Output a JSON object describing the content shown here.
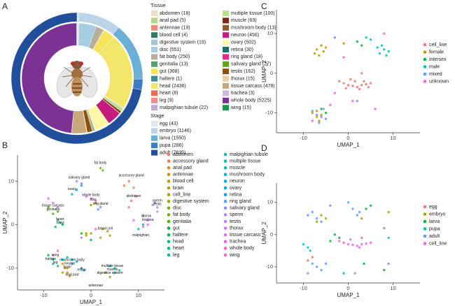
{
  "chart_data": [
    {
      "type": "pie",
      "panel": "A",
      "rings": [
        {
          "title": "Tissue",
          "labels": [
            "abdomen (18)",
            "anal pad (5)",
            "antennae (19)",
            "blood cell (4)",
            "digestive system (19)",
            "disc (551)",
            "fat body (250)",
            "genitalia (13)",
            "gut (368)",
            "haltere (1)",
            "head (2436)",
            "heart (8)",
            "leg (9)",
            "malpighian tubule (22)",
            "multiple tissue (100)",
            "muscle (63)",
            "mushroom body (13)",
            "neuron (456)",
            "ovary (502)",
            "retina (30)",
            "ring gland (18)",
            "salivary gland (27)",
            "testis (162)",
            "thorax (15)",
            "tissue carcass (478)",
            "trachea (3)",
            "whole body (5225)",
            "wing (15)"
          ],
          "values": [
            18,
            5,
            19,
            4,
            19,
            551,
            250,
            13,
            368,
            1,
            2436,
            8,
            9,
            22,
            100,
            63,
            13,
            456,
            502,
            30,
            18,
            27,
            162,
            15,
            478,
            3,
            5225,
            15
          ],
          "colors": [
            "#f0dcc4",
            "#b5d88f",
            "#ee8a7a",
            "#2e7d5b",
            "#a8c4d8",
            "#a6cee3",
            "#b9ad9a",
            "#5a9e6f",
            "#f7e45a",
            "#3a8f8a",
            "#f2e66b",
            "#e4704f",
            "#f28c8c",
            "#c3a9d6",
            "#b8e186",
            "#7f2a1c",
            "#8c5a2b",
            "#c51b7d",
            "#fff6a8",
            "#1f6f6f",
            "#e7298a",
            "#66a61e",
            "#8c510a",
            "#e8cfa8",
            "#c7a87a",
            "#cdb5e0",
            "#7b3294",
            "#1a9850"
          ]
        },
        {
          "title": "Stage",
          "labels": [
            "egg (43)",
            "embryo (1146)",
            "larva (1550)",
            "pupa (286)",
            "adult (7835)"
          ],
          "values": [
            43,
            1146,
            1550,
            286,
            7835
          ],
          "colors": [
            "#dce9f5",
            "#bcd4ea",
            "#6baed6",
            "#3b7cc2",
            "#214f9c"
          ]
        }
      ]
    },
    {
      "type": "scatter",
      "panel": "B",
      "x_label": "UMAP_1",
      "y_label": "UMAP_2",
      "xlim": [
        -15.5,
        15.5
      ],
      "ylim": [
        -15,
        16
      ],
      "xticks": [
        -10,
        0,
        10
      ],
      "yticks": [
        -10,
        0,
        10
      ],
      "series": [
        {
          "name": "abdomen",
          "color": "#f8766d",
          "x": [
            8.5,
            9.5,
            8
          ],
          "y": [
            5.5,
            6.5,
            4
          ]
        },
        {
          "name": "accessory gland",
          "color": "#f07e4d",
          "x": [
            7,
            8,
            9
          ],
          "y": [
            9,
            10,
            8.5
          ]
        },
        {
          "name": "anal pad",
          "color": "#e68613",
          "x": [
            -5,
            -4.5
          ],
          "y": [
            -11,
            -11.8
          ]
        },
        {
          "name": "antennae",
          "color": "#db8e00",
          "x": [
            -6,
            -5.5
          ],
          "y": [
            -11,
            -10
          ]
        },
        {
          "name": "blood cell",
          "color": "#cd9600",
          "x": [
            2.5,
            3.5
          ],
          "y": [
            -1,
            -1.5
          ]
        },
        {
          "name": "brain",
          "color": "#be9c00",
          "x": [
            -6,
            -5
          ],
          "y": [
            -9,
            -10
          ]
        },
        {
          "name": "cell_line",
          "color": "#aea200",
          "x": [
            0,
            2,
            4,
            -1
          ],
          "y": [
            -2,
            -3,
            -2.5,
            -2.5
          ]
        },
        {
          "name": "digestive system",
          "color": "#9ca700",
          "x": [
            3,
            4
          ],
          "y": [
            -11,
            -12
          ]
        },
        {
          "name": "disc",
          "color": "#86ac00",
          "x": [
            1,
            0,
            -1
          ],
          "y": [
            5,
            4.5,
            -2
          ]
        },
        {
          "name": "fat body",
          "color": "#6bb100",
          "x": [
            2,
            2.5
          ],
          "y": [
            13,
            12.5
          ]
        },
        {
          "name": "genitalia",
          "color": "#45b500",
          "x": [
            -8,
            -7,
            -9
          ],
          "y": [
            2.5,
            3,
            4
          ]
        },
        {
          "name": "gut",
          "color": "#00b931",
          "x": [
            0,
            -2
          ],
          "y": [
            -3.5,
            -2
          ]
        },
        {
          "name": "haltere",
          "color": "#00bc52",
          "x": [
            -8,
            -9
          ],
          "y": [
            -8,
            -7
          ]
        },
        {
          "name": "head",
          "color": "#00be6c",
          "x": [
            -7,
            -6,
            -7.5
          ],
          "y": [
            1,
            0,
            -0.5
          ]
        },
        {
          "name": "heart",
          "color": "#00c082",
          "x": [
            -6.5
          ],
          "y": [
            0.5
          ]
        },
        {
          "name": "leg",
          "color": "#00c196",
          "x": [
            -8,
            -7
          ],
          "y": [
            -9,
            -9.5
          ]
        },
        {
          "name": "malpighian tubule",
          "color": "#00c1a9",
          "x": [
            10,
            11
          ],
          "y": [
            -1,
            0
          ]
        },
        {
          "name": "multiple tissue",
          "color": "#00c0bb",
          "x": [
            5,
            4
          ],
          "y": [
            -10,
            -9.5
          ]
        },
        {
          "name": "muscle",
          "color": "#00bdcc",
          "x": [
            6,
            5
          ],
          "y": [
            -10.5,
            -11
          ]
        },
        {
          "name": "mushroom body",
          "color": "#00b9da",
          "x": [
            -4,
            -3
          ],
          "y": [
            -8,
            -8.5
          ]
        },
        {
          "name": "neuron",
          "color": "#00b4e7",
          "x": [
            -6,
            -5,
            -4
          ],
          "y": [
            -8,
            -7.5,
            -9
          ]
        },
        {
          "name": "ovary",
          "color": "#00adf2",
          "x": [
            -3,
            -2,
            -4
          ],
          "y": [
            8,
            9,
            7
          ]
        },
        {
          "name": "retina",
          "color": "#00a5fb",
          "x": [
            -2,
            -1.5
          ],
          "y": [
            -10,
            -10.5
          ]
        },
        {
          "name": "ring gland",
          "color": "#619cff",
          "x": [
            2,
            1.5
          ],
          "y": [
            4,
            3.5
          ]
        },
        {
          "name": "salivary gland",
          "color": "#8b93ff",
          "x": [
            -2,
            -3
          ],
          "y": [
            9.5,
            10
          ]
        },
        {
          "name": "sperm",
          "color": "#a789ff",
          "x": [
            14,
            13.5
          ],
          "y": [
            4,
            5
          ]
        },
        {
          "name": "testis",
          "color": "#bc80ff",
          "x": [
            13,
            14
          ],
          "y": [
            4.5,
            3
          ]
        },
        {
          "name": "thorax",
          "color": "#ce78fb",
          "x": [
            11,
            12
          ],
          "y": [
            2,
            1
          ]
        },
        {
          "name": "tissue carcass",
          "color": "#dd71f3",
          "x": [
            -8,
            -9,
            -7,
            9
          ],
          "y": [
            5,
            6,
            4,
            1
          ]
        },
        {
          "name": "trachea",
          "color": "#e96be8",
          "x": [
            12,
            11
          ],
          "y": [
            0,
            -0.5
          ]
        },
        {
          "name": "whole body",
          "color": "#f365db",
          "x": [
            0,
            -1,
            1,
            -2,
            1
          ],
          "y": [
            6,
            6.5,
            5.5,
            -3,
            -1
          ]
        },
        {
          "name": "wing",
          "color": "#fa62cc",
          "x": [
            -7,
            -8
          ],
          "y": [
            -6,
            -7
          ]
        }
      ],
      "annotations": [
        {
          "text": "fat body",
          "x": 2,
          "y": 14.2
        },
        {
          "text": "accessory gland",
          "x": 8.5,
          "y": 11.3
        },
        {
          "text": "salivary gland",
          "x": -2.5,
          "y": 10.8
        },
        {
          "text": "whole body",
          "x": 0,
          "y": 6.8
        },
        {
          "text": "disc",
          "x": 0.5,
          "y": 5.8
        },
        {
          "text": "ring gland",
          "x": 2,
          "y": 4.8
        },
        {
          "text": "abdomen",
          "x": 9,
          "y": 6.6
        },
        {
          "text": "sperm",
          "x": 14,
          "y": 5.5
        },
        {
          "text": "testis",
          "x": 14,
          "y": 4.7
        },
        {
          "text": "thorax",
          "x": 11.7,
          "y": 2
        },
        {
          "text": "trachea",
          "x": 12,
          "y": 1.1
        },
        {
          "text": "malpighian",
          "x": 10.5,
          "y": -2.4
        },
        {
          "text": "ovary",
          "x": -4,
          "y": 8.2
        },
        {
          "text": "tissue carcass",
          "x": -8,
          "y": 4.4
        },
        {
          "text": "genitalia",
          "x": -8,
          "y": 3.5
        },
        {
          "text": "heart",
          "x": -6.5,
          "y": 1.3
        },
        {
          "text": "head",
          "x": -6.5,
          "y": 0.4
        },
        {
          "text": "blood cell",
          "x": 3,
          "y": -0.9
        },
        {
          "text": "wing",
          "x": -7.5,
          "y": -7
        },
        {
          "text": "haltere",
          "x": -8.5,
          "y": -7.9
        },
        {
          "text": "leg",
          "x": -7.5,
          "y": -8.7
        },
        {
          "text": "mushroom body",
          "x": -4,
          "y": -8.1
        },
        {
          "text": "neuron",
          "x": -4.5,
          "y": -8.9
        },
        {
          "text": "brain",
          "x": -5,
          "y": -9.7
        },
        {
          "text": "retina",
          "x": -2,
          "y": -10.4
        },
        {
          "text": "anal pad",
          "x": -4,
          "y": -11.5
        },
        {
          "text": "multiple tissue",
          "x": 4.5,
          "y": -9.5
        },
        {
          "text": "muscle",
          "x": 4.5,
          "y": -10.3
        },
        {
          "text": "digestive system",
          "x": 4,
          "y": -11.1
        },
        {
          "text": "antennae",
          "x": 1,
          "y": -14
        }
      ]
    },
    {
      "type": "scatter",
      "panel": "C",
      "x_label": "UMAP_1",
      "y_label": "UMAP_2",
      "xlim": [
        -16,
        16
      ],
      "ylim": [
        -15,
        16
      ],
      "xticks": [
        -10,
        0,
        10
      ],
      "yticks": [
        -10,
        0,
        10
      ],
      "series": [
        {
          "name": "cell_line",
          "color": "#f8766d",
          "x": [
            -2,
            -1,
            0,
            1,
            2,
            3,
            4,
            5,
            1.5,
            2.5,
            0.5,
            3.5,
            -0.5,
            4.5
          ],
          "y": [
            -2,
            -2.5,
            -3,
            -3.2,
            -3.5,
            -3,
            -2.8,
            -2.5,
            -2,
            -4,
            -1.5,
            -2,
            -3.8,
            -3.5
          ]
        },
        {
          "name": "female",
          "color": "#b79f00",
          "x": [
            -7,
            -6,
            -5.5,
            -6.5,
            -7.5,
            -5,
            -8,
            -7,
            -6,
            -1,
            -7,
            -6.5
          ],
          "y": [
            6,
            7,
            5.5,
            4.5,
            5,
            6.5,
            -10,
            -11,
            -10.5,
            7.5,
            -9.5,
            -12
          ]
        },
        {
          "name": "intersex",
          "color": "#00ba38",
          "x": [
            -6,
            -5,
            2,
            3
          ],
          "y": [
            -9,
            -10,
            8,
            7
          ]
        },
        {
          "name": "male",
          "color": "#00bfc4",
          "x": [
            7,
            8,
            9,
            8.5,
            6.5,
            7.5,
            5,
            4
          ],
          "y": [
            5,
            6,
            5.5,
            4.5,
            6.5,
            7,
            8.5,
            9
          ]
        },
        {
          "name": "mixed",
          "color": "#619cff",
          "x": [
            -7,
            -6,
            -5,
            -8,
            -6.5,
            -5.5,
            2,
            -3
          ],
          "y": [
            -10.5,
            -11,
            -11.5,
            -9.5,
            -12.5,
            -9,
            -7,
            9
          ]
        },
        {
          "name": "unknown",
          "color": "#f564e3",
          "x": [
            -4,
            -3,
            1,
            3,
            -1,
            6,
            -8,
            8
          ],
          "y": [
            -8,
            -5,
            -7,
            0,
            4,
            -9,
            -12,
            10
          ]
        }
      ]
    },
    {
      "type": "scatter",
      "panel": "D",
      "x_label": "UMAP_1",
      "y_label": "UMAP_2",
      "xlim": [
        -16,
        16
      ],
      "ylim": [
        -15,
        16
      ],
      "xticks": [
        -10,
        0,
        10
      ],
      "yticks": [
        -10,
        0,
        10
      ],
      "series": [
        {
          "name": "egg",
          "color": "#f8766d",
          "x": [
            -9,
            -8,
            3
          ],
          "y": [
            -8,
            -7,
            -1
          ]
        },
        {
          "name": "embryo",
          "color": "#b79f00",
          "x": [
            -6,
            -5,
            -7,
            3,
            9
          ],
          "y": [
            6,
            5,
            4,
            5,
            7
          ]
        },
        {
          "name": "larva",
          "color": "#00ba38",
          "x": [
            -3,
            -2,
            -4,
            4,
            5,
            3.5,
            8
          ],
          "y": [
            0,
            -1,
            -2,
            8,
            9,
            -9,
            -11
          ]
        },
        {
          "name": "pupa",
          "color": "#00bfc4",
          "x": [
            -9,
            -8.5,
            -10,
            9,
            -1
          ],
          "y": [
            -4,
            -5,
            -3,
            -1,
            -12
          ]
        },
        {
          "name": "adult",
          "color": "#619cff",
          "x": [
            -9,
            -8,
            -7,
            -6,
            -8,
            -7,
            -6,
            -9,
            -5,
            1,
            2,
            2.5,
            8,
            9,
            -4,
            0,
            1.5
          ],
          "y": [
            6,
            7,
            5,
            4,
            -9,
            -10,
            -11,
            -12,
            -9,
            8,
            6,
            7,
            2,
            -9,
            9,
            10,
            -12
          ]
        },
        {
          "name": "cell_line",
          "color": "#f564e3",
          "x": [
            -2,
            -1,
            0,
            1,
            2,
            3,
            4,
            5,
            0.5,
            2.5
          ],
          "y": [
            -2,
            -2.5,
            -3,
            -3.2,
            -3.5,
            -3,
            -2.8,
            -2.5,
            -1.5,
            -4
          ]
        }
      ]
    }
  ]
}
